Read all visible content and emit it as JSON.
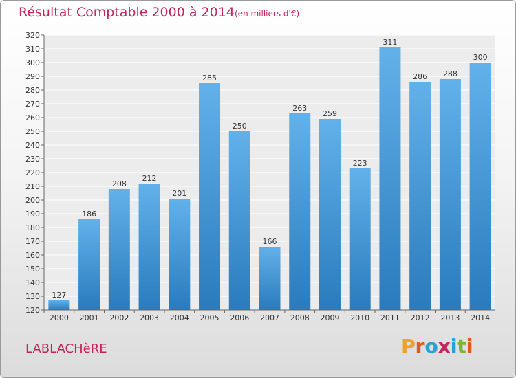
{
  "header": {
    "title": "Résultat Comptable 2000 à 2014",
    "subtitle": "(en milliers d'€)"
  },
  "footer": {
    "commune": "LABLACHèRE",
    "logo_text": "Proxiti",
    "logo_colors": [
      "#f0a12c",
      "#e05a1e",
      "#2aa0d8",
      "#c0265a",
      "#2aa0d8",
      "#7ab630",
      "#e05a1e"
    ]
  },
  "colors": {
    "bar_top": "#62b1ea",
    "bar_bottom": "#2a7bbd",
    "title": "#c0265a"
  },
  "chart_data": {
    "type": "bar",
    "categories": [
      "2000",
      "2001",
      "2002",
      "2003",
      "2004",
      "2005",
      "2006",
      "2007",
      "2008",
      "2009",
      "2010",
      "2011",
      "2012",
      "2013",
      "2014"
    ],
    "values": [
      127,
      186,
      208,
      212,
      201,
      285,
      250,
      166,
      263,
      259,
      223,
      311,
      286,
      288,
      300
    ],
    "ylim": [
      120,
      320
    ],
    "ytick_step": 10,
    "grid": true,
    "data_labels": true
  }
}
